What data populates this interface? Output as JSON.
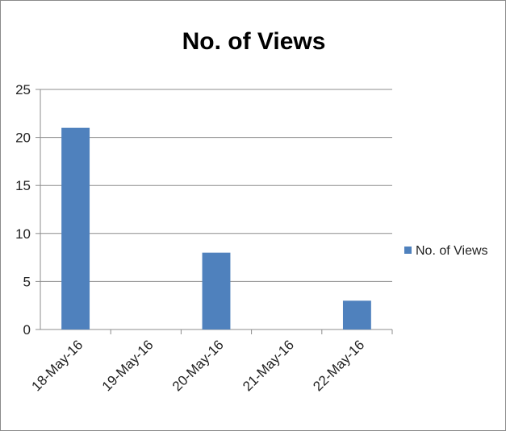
{
  "chart_data": {
    "type": "bar",
    "title": "No. of Views",
    "xlabel": "",
    "ylabel": "",
    "categories": [
      "18-May-16",
      "19-May-16",
      "20-May-16",
      "21-May-16",
      "22-May-16"
    ],
    "series": [
      {
        "name": "No. of Views",
        "values": [
          21,
          0,
          8,
          0,
          3
        ],
        "color": "#4f81bd"
      }
    ],
    "ylim": [
      0,
      25
    ],
    "yticks": [
      "0",
      "5",
      "10",
      "15",
      "20",
      "25"
    ],
    "grid": true,
    "legend_position": "right"
  }
}
